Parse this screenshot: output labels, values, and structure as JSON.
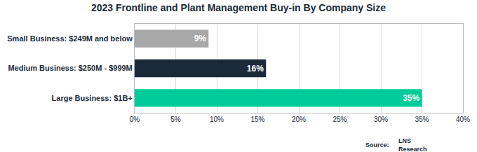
{
  "chart_data": {
    "type": "bar",
    "orientation": "horizontal",
    "title": "2023 Frontline and Plant Management Buy-in By Company Size",
    "categories": [
      "Large Business: $1B+",
      "Medium Business: $250M - $999M",
      "Small Business: $249M and below"
    ],
    "values": [
      35,
      16,
      9
    ],
    "value_labels": [
      "35%",
      "16%",
      "9%"
    ],
    "data_labels": true,
    "colors": [
      "#00CC99",
      "#1B2A3B",
      "#A8A8A8"
    ],
    "xlim": [
      0,
      40
    ],
    "xticks": [
      {
        "value": 0,
        "label": "0%"
      },
      {
        "value": 5,
        "label": "5%"
      },
      {
        "value": 10,
        "label": "10%"
      },
      {
        "value": 15,
        "label": "15%"
      },
      {
        "value": 20,
        "label": "20%"
      },
      {
        "value": 25,
        "label": "25%"
      },
      {
        "value": 30,
        "label": "30%"
      },
      {
        "value": 35,
        "label": "35%"
      },
      {
        "value": 40,
        "label": "40%"
      }
    ],
    "grid": true,
    "annotations": [
      "Source:",
      "LNS\nResearch"
    ]
  }
}
